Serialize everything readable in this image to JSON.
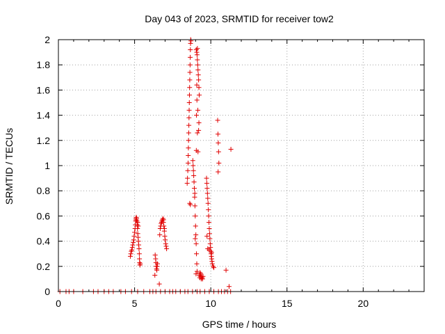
{
  "chart_data": {
    "type": "scatter",
    "title": "Day 043 of 2023, SRMTID for receiver tow2",
    "xlabel": "GPS time / hours",
    "ylabel": "SRMTID / TECUs",
    "xlim": [
      0,
      24
    ],
    "ylim": [
      0,
      2
    ],
    "xticks": [
      0,
      5,
      10,
      15,
      20
    ],
    "xtick_labels": [
      "0",
      "5",
      "10",
      "15",
      "20"
    ],
    "yticks": [
      0,
      0.2,
      0.4,
      0.6,
      0.8,
      1,
      1.2,
      1.4,
      1.6,
      1.8,
      2
    ],
    "ytick_labels": [
      "0",
      "0.2",
      "0.4",
      "0.6",
      "0.8",
      "1",
      "1.2",
      "1.4",
      "1.6",
      "1.8",
      "2"
    ],
    "grid": true,
    "marker": "+",
    "color": "#e00000",
    "series": [
      {
        "name": "SRMTID",
        "points": [
          [
            0.1,
            0
          ],
          [
            0.5,
            0
          ],
          [
            0.7,
            0
          ],
          [
            1.0,
            0
          ],
          [
            1.6,
            0
          ],
          [
            2.3,
            0
          ],
          [
            2.6,
            0
          ],
          [
            3.0,
            0
          ],
          [
            3.3,
            0
          ],
          [
            3.6,
            0
          ],
          [
            4.1,
            0
          ],
          [
            4.4,
            0
          ],
          [
            4.8,
            0
          ],
          [
            5.2,
            0
          ],
          [
            5.6,
            0
          ],
          [
            6.0,
            0
          ],
          [
            6.2,
            0
          ],
          [
            6.4,
            0
          ],
          [
            6.7,
            0
          ],
          [
            7.0,
            0
          ],
          [
            7.3,
            0
          ],
          [
            7.5,
            0
          ],
          [
            7.7,
            0
          ],
          [
            8.0,
            0
          ],
          [
            8.3,
            0
          ],
          [
            8.5,
            0
          ],
          [
            8.8,
            0
          ],
          [
            9.1,
            0
          ],
          [
            9.3,
            0
          ],
          [
            9.6,
            0
          ],
          [
            9.9,
            0
          ],
          [
            10.2,
            0
          ],
          [
            10.5,
            0
          ],
          [
            10.7,
            0
          ],
          [
            10.9,
            0
          ],
          [
            11.1,
            0
          ],
          [
            11.3,
            0
          ],
          [
            4.72,
            0.28
          ],
          [
            4.75,
            0.3
          ],
          [
            4.78,
            0.32
          ],
          [
            4.82,
            0.33
          ],
          [
            4.85,
            0.35
          ],
          [
            4.88,
            0.37
          ],
          [
            4.91,
            0.39
          ],
          [
            4.94,
            0.41
          ],
          [
            4.97,
            0.44
          ],
          [
            5.0,
            0.47
          ],
          [
            5.03,
            0.5
          ],
          [
            5.05,
            0.53
          ],
          [
            5.07,
            0.56
          ],
          [
            5.09,
            0.58
          ],
          [
            5.11,
            0.59
          ],
          [
            5.13,
            0.58
          ],
          [
            5.15,
            0.56
          ],
          [
            5.17,
            0.53
          ],
          [
            5.19,
            0.5
          ],
          [
            5.21,
            0.46
          ],
          [
            5.23,
            0.43
          ],
          [
            5.25,
            0.4
          ],
          [
            5.27,
            0.37
          ],
          [
            5.29,
            0.34
          ],
          [
            5.31,
            0.3
          ],
          [
            5.32,
            0.26
          ],
          [
            5.33,
            0.23
          ],
          [
            5.35,
            0.21
          ],
          [
            5.37,
            0.22
          ],
          [
            5.2,
            0.55
          ],
          [
            5.24,
            0.52
          ],
          [
            5.1,
            0.57
          ],
          [
            6.35,
            0.29
          ],
          [
            6.38,
            0.26
          ],
          [
            6.4,
            0.23
          ],
          [
            6.42,
            0.2
          ],
          [
            6.44,
            0.18
          ],
          [
            6.46,
            0.17
          ],
          [
            6.48,
            0.2
          ],
          [
            6.5,
            0.22
          ],
          [
            6.33,
            0.13
          ],
          [
            6.62,
            0.06
          ],
          [
            6.65,
            0.45
          ],
          [
            6.68,
            0.5
          ],
          [
            6.71,
            0.52
          ],
          [
            6.74,
            0.54
          ],
          [
            6.77,
            0.55
          ],
          [
            6.8,
            0.56
          ],
          [
            6.83,
            0.57
          ],
          [
            6.86,
            0.58
          ],
          [
            6.89,
            0.55
          ],
          [
            6.92,
            0.52
          ],
          [
            6.95,
            0.48
          ],
          [
            6.98,
            0.44
          ],
          [
            7.01,
            0.41
          ],
          [
            7.04,
            0.38
          ],
          [
            7.07,
            0.36
          ],
          [
            7.1,
            0.34
          ],
          [
            6.9,
            0.57
          ],
          [
            6.96,
            0.5
          ],
          [
            8.45,
            0.86
          ],
          [
            8.47,
            0.9
          ],
          [
            8.49,
            0.96
          ],
          [
            8.51,
            1.02
          ],
          [
            8.52,
            1.08
          ],
          [
            8.53,
            1.14
          ],
          [
            8.54,
            1.2
          ],
          [
            8.55,
            1.26
          ],
          [
            8.56,
            1.32
          ],
          [
            8.57,
            1.38
          ],
          [
            8.58,
            1.44
          ],
          [
            8.59,
            1.5
          ],
          [
            8.6,
            1.56
          ],
          [
            8.61,
            1.62
          ],
          [
            8.62,
            1.68
          ],
          [
            8.63,
            1.74
          ],
          [
            8.64,
            1.8
          ],
          [
            8.65,
            1.86
          ],
          [
            8.66,
            1.92
          ],
          [
            8.67,
            1.97
          ],
          [
            8.68,
            2.0
          ],
          [
            8.7,
            1.99
          ],
          [
            8.62,
            0.7
          ],
          [
            8.66,
            0.69
          ],
          [
            8.82,
            1.04
          ],
          [
            8.84,
            1.0
          ],
          [
            8.86,
            0.96
          ],
          [
            8.88,
            0.92
          ],
          [
            8.9,
            0.87
          ],
          [
            8.92,
            0.82
          ],
          [
            8.94,
            0.75
          ],
          [
            8.96,
            0.68
          ],
          [
            8.98,
            0.6
          ],
          [
            9.0,
            0.52
          ],
          [
            9.02,
            0.45
          ],
          [
            9.04,
            0.38
          ],
          [
            9.06,
            0.3
          ],
          [
            9.08,
            0.22
          ],
          [
            9.1,
            0.16
          ],
          [
            8.95,
            0.78
          ],
          [
            8.98,
            0.42
          ],
          [
            9.03,
            0.14
          ],
          [
            9.05,
            1.92
          ],
          [
            9.08,
            1.9
          ],
          [
            9.1,
            1.88
          ],
          [
            9.12,
            1.84
          ],
          [
            9.14,
            1.8
          ],
          [
            9.16,
            1.76
          ],
          [
            9.18,
            1.72
          ],
          [
            9.2,
            1.68
          ],
          [
            9.22,
            1.62
          ],
          [
            9.24,
            1.56
          ],
          [
            9.09,
            1.52
          ],
          [
            9.15,
            1.44
          ],
          [
            9.06,
            1.4
          ],
          [
            9.22,
            1.34
          ],
          [
            9.2,
            1.28
          ],
          [
            9.12,
            1.26
          ],
          [
            9.05,
            1.12
          ],
          [
            9.16,
            1.11
          ],
          [
            9.08,
            1.64
          ],
          [
            9.12,
            1.93
          ],
          [
            9.25,
            0.13
          ],
          [
            9.28,
            0.11
          ],
          [
            9.31,
            0.12
          ],
          [
            9.34,
            0.14
          ],
          [
            9.37,
            0.1
          ],
          [
            9.4,
            0.12
          ],
          [
            9.43,
            0.11
          ],
          [
            9.46,
            0.1
          ],
          [
            9.49,
            0.12
          ],
          [
            9.3,
            0.15
          ],
          [
            9.72,
            0.9
          ],
          [
            9.74,
            0.86
          ],
          [
            9.76,
            0.82
          ],
          [
            9.78,
            0.78
          ],
          [
            9.8,
            0.74
          ],
          [
            9.82,
            0.7
          ],
          [
            9.84,
            0.65
          ],
          [
            9.86,
            0.6
          ],
          [
            9.88,
            0.55
          ],
          [
            9.9,
            0.5
          ],
          [
            9.92,
            0.46
          ],
          [
            9.94,
            0.42
          ],
          [
            9.96,
            0.38
          ],
          [
            9.98,
            0.35
          ],
          [
            10.0,
            0.32
          ],
          [
            10.02,
            0.3
          ],
          [
            10.04,
            0.28
          ],
          [
            10.06,
            0.26
          ],
          [
            10.08,
            0.24
          ],
          [
            10.1,
            0.22
          ],
          [
            10.15,
            0.2
          ],
          [
            10.2,
            0.19
          ],
          [
            9.75,
            0.44
          ],
          [
            9.8,
            0.34
          ],
          [
            9.9,
            0.33
          ],
          [
            10.05,
            0.31
          ],
          [
            10.45,
            1.36
          ],
          [
            10.47,
            1.25
          ],
          [
            10.49,
            1.18
          ],
          [
            10.51,
            1.11
          ],
          [
            10.53,
            1.02
          ],
          [
            10.48,
            0.95
          ],
          [
            11.32,
            1.13
          ],
          [
            11.0,
            0.17
          ],
          [
            11.2,
            0.04
          ]
        ]
      }
    ]
  }
}
